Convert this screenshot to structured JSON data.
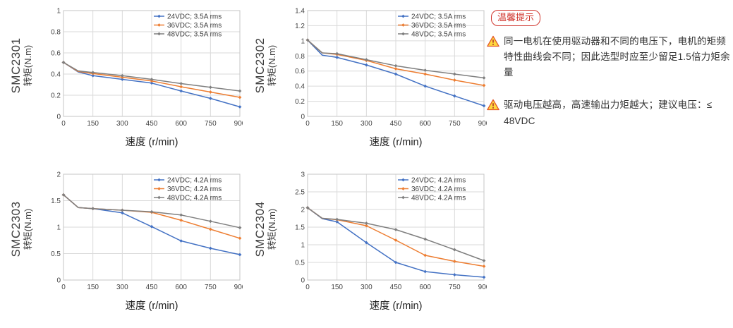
{
  "page": {
    "background": "#FFFFFF"
  },
  "tips": {
    "badge": "温馨提示",
    "accent_color": "#D0342C",
    "warning_icon_colors": {
      "fill": "#FFD83E",
      "border": "#E2572B",
      "mark": "#B3392A"
    },
    "items": [
      "同一电机在使用驱动器和不同的电压下，电机的矩频特性曲线会不同；因此选型时应至少留足1.5倍力矩余量",
      "驱动电压越高，高速输出力矩越大；建议电压：≤ 48VDC"
    ]
  },
  "style": {
    "gridline_color": "#DADADA",
    "plot_border_color": "#C6C6C6",
    "tick_label_color": "#444444",
    "legend_text_color": "#3D3D3D",
    "series_colors": {
      "blue": "#4472C4",
      "orange": "#ED7D31",
      "gray": "#7F7F7F"
    }
  },
  "chart_data": [
    {
      "type": "line",
      "model": "SMC2301",
      "ylabel": "转矩(N.m)",
      "xlabel": "速度 (r/min)",
      "x": [
        0,
        75,
        150,
        300,
        450,
        600,
        750,
        900
      ],
      "x_ticks": [
        0,
        150,
        300,
        450,
        600,
        750,
        900
      ],
      "ylim": [
        0,
        1
      ],
      "y_tick_step": 0.2,
      "grid": true,
      "legend_position": "top-right",
      "series": [
        {
          "name": "24VDC; 3.5A rms",
          "color": "#4472C4",
          "values": [
            0.51,
            0.42,
            0.385,
            0.35,
            0.315,
            0.24,
            0.17,
            0.09
          ]
        },
        {
          "name": "36VDC; 3.5A rms",
          "color": "#ED7D31",
          "values": [
            0.51,
            0.425,
            0.405,
            0.37,
            0.335,
            0.28,
            0.23,
            0.18
          ]
        },
        {
          "name": "48VDC; 3.5A rms",
          "color": "#7F7F7F",
          "values": [
            0.51,
            0.43,
            0.415,
            0.385,
            0.35,
            0.31,
            0.275,
            0.24
          ]
        }
      ]
    },
    {
      "type": "line",
      "model": "SMC2302",
      "ylabel": "转矩(N.m)",
      "xlabel": "速度 (r/min)",
      "x": [
        0,
        75,
        150,
        300,
        450,
        600,
        750,
        900
      ],
      "x_ticks": [
        0,
        150,
        300,
        450,
        600,
        750,
        900
      ],
      "ylim": [
        0,
        1.4
      ],
      "y_tick_step": 0.2,
      "grid": true,
      "legend_position": "top-right",
      "series": [
        {
          "name": "24VDC; 3.5A rms",
          "color": "#4472C4",
          "values": [
            1.01,
            0.81,
            0.78,
            0.68,
            0.56,
            0.4,
            0.27,
            0.14
          ]
        },
        {
          "name": "36VDC; 3.5A rms",
          "color": "#ED7D31",
          "values": [
            1.01,
            0.84,
            0.82,
            0.74,
            0.63,
            0.56,
            0.48,
            0.41
          ]
        },
        {
          "name": "48VDC; 3.5A rms",
          "color": "#7F7F7F",
          "values": [
            1.01,
            0.84,
            0.83,
            0.75,
            0.67,
            0.61,
            0.56,
            0.51
          ]
        }
      ]
    },
    {
      "type": "line",
      "model": "SMC2303",
      "ylabel": "转矩(N.m)",
      "xlabel": "速度 (r/min)",
      "x": [
        0,
        75,
        150,
        300,
        450,
        600,
        750,
        900
      ],
      "x_ticks": [
        0,
        150,
        300,
        450,
        600,
        750,
        900
      ],
      "ylim": [
        0,
        2
      ],
      "y_tick_step": 0.5,
      "grid": true,
      "legend_position": "top-right",
      "series": [
        {
          "name": "24VDC; 4.2A rms",
          "color": "#4472C4",
          "values": [
            1.61,
            1.37,
            1.35,
            1.27,
            1.01,
            0.74,
            0.6,
            0.48
          ]
        },
        {
          "name": "36VDC; 4.2A rms",
          "color": "#ED7D31",
          "values": [
            1.61,
            1.37,
            1.35,
            1.32,
            1.28,
            1.13,
            0.96,
            0.79
          ]
        },
        {
          "name": "48VDC; 4.2A rms",
          "color": "#7F7F7F",
          "values": [
            1.61,
            1.37,
            1.35,
            1.32,
            1.29,
            1.23,
            1.11,
            0.99
          ]
        }
      ]
    },
    {
      "type": "line",
      "model": "SMC2304",
      "ylabel": "转矩(N.m)",
      "xlabel": "速度 (r/min)",
      "x": [
        0,
        75,
        150,
        300,
        450,
        600,
        750,
        900
      ],
      "x_ticks": [
        0,
        150,
        300,
        450,
        600,
        750,
        900
      ],
      "ylim": [
        0,
        3
      ],
      "y_tick_step": 0.5,
      "grid": true,
      "legend_position": "top-right",
      "series": [
        {
          "name": "24VDC; 4.2A rms",
          "color": "#4472C4",
          "values": [
            2.05,
            1.74,
            1.65,
            1.06,
            0.5,
            0.24,
            0.15,
            0.08
          ]
        },
        {
          "name": "36VDC; 4.2A rms",
          "color": "#ED7D31",
          "values": [
            2.05,
            1.75,
            1.71,
            1.54,
            1.13,
            0.7,
            0.53,
            0.39
          ]
        },
        {
          "name": "48VDC; 4.2A rms",
          "color": "#7F7F7F",
          "values": [
            2.05,
            1.75,
            1.72,
            1.61,
            1.43,
            1.16,
            0.86,
            0.55
          ]
        }
      ]
    }
  ]
}
